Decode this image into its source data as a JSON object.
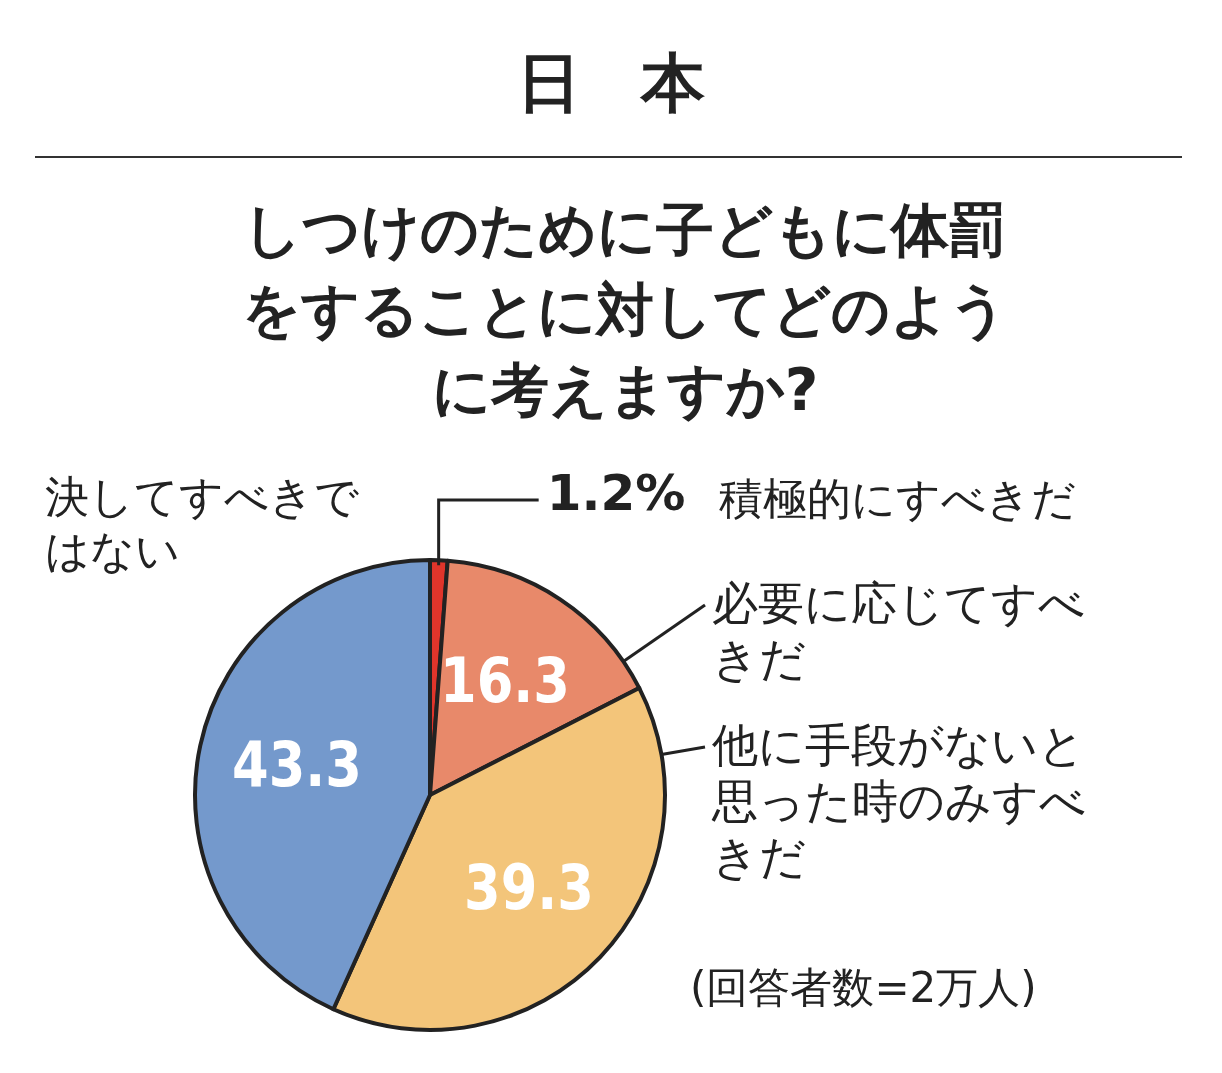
{
  "chart_data": {
    "type": "pie",
    "title": "日本",
    "subtitle": "しつけのために子どもに体罰をすることに対してどのように考えますか?",
    "categories": [
      "積極的にすべきだ",
      "必要に応じてすべきだ",
      "他に手段がないと思った時のみすべきだ",
      "決してすべきではない"
    ],
    "values": [
      1.2,
      16.3,
      39.3,
      43.3
    ],
    "colors": [
      "#e0352b",
      "#e8896a",
      "#f3c57a",
      "#7499cc"
    ],
    "value_labels": [
      "1.2%",
      "16.3",
      "39.3",
      "43.3"
    ],
    "annotations": [
      "(回答者数=2万人)"
    ]
  }
}
